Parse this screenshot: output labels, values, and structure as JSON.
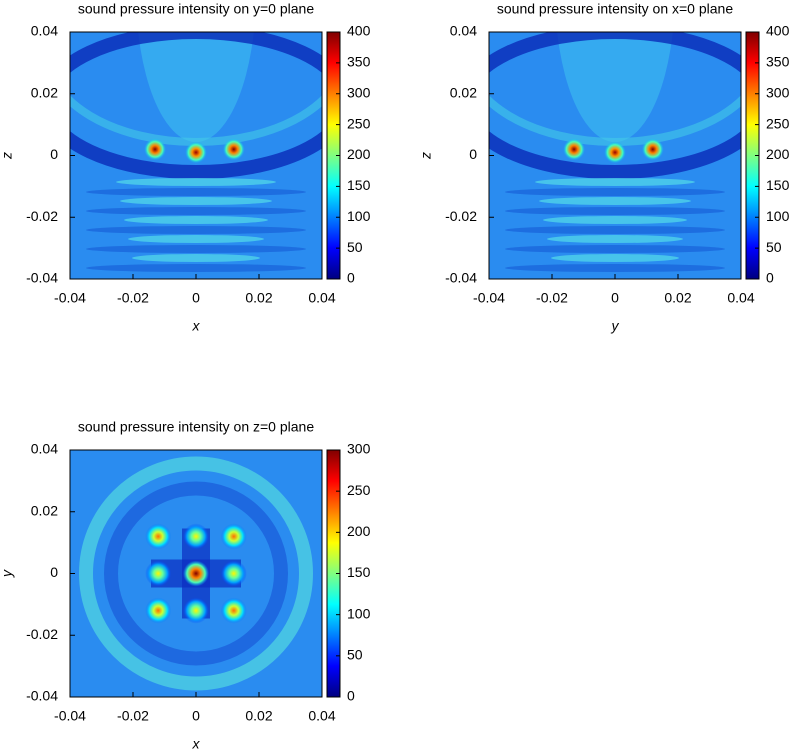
{
  "chart_data": [
    {
      "type": "heatmap",
      "title": "sound pressure intensity on y=0 plane",
      "xlabel": "x",
      "ylabel": "z",
      "xlim": [
        -0.04,
        0.04
      ],
      "ylim": [
        -0.04,
        0.04
      ],
      "xticks": [
        -0.04,
        -0.02,
        0,
        0.02,
        0.04
      ],
      "yticks": [
        -0.04,
        -0.02,
        0,
        0.02,
        0.04
      ],
      "clim": [
        0,
        400
      ],
      "cticks": [
        0,
        50,
        100,
        150,
        200,
        250,
        300,
        350,
        400
      ],
      "colormap": "jet",
      "peaks": [
        {
          "x": -0.013,
          "y": 0.002,
          "value": 400
        },
        {
          "x": 0,
          "y": 0.001,
          "value": 390
        },
        {
          "x": 0.012,
          "y": 0.002,
          "value": 400
        }
      ]
    },
    {
      "type": "heatmap",
      "title": "sound pressure intensity on x=0 plane",
      "xlabel": "y",
      "ylabel": "z",
      "xlim": [
        -0.04,
        0.04
      ],
      "ylim": [
        -0.04,
        0.04
      ],
      "xticks": [
        -0.04,
        -0.02,
        0,
        0.02,
        0.04
      ],
      "yticks": [
        -0.04,
        -0.02,
        0,
        0.02,
        0.04
      ],
      "clim": [
        0,
        400
      ],
      "cticks": [
        0,
        50,
        100,
        150,
        200,
        250,
        300,
        350,
        400
      ],
      "colormap": "jet",
      "peaks": [
        {
          "x": -0.013,
          "y": 0.002,
          "value": 400
        },
        {
          "x": 0,
          "y": 0.001,
          "value": 390
        },
        {
          "x": 0.012,
          "y": 0.002,
          "value": 400
        }
      ]
    },
    {
      "type": "heatmap",
      "title": "sound pressure intensity on z=0 plane",
      "xlabel": "x",
      "ylabel": "y",
      "xlim": [
        -0.04,
        0.04
      ],
      "ylim": [
        -0.04,
        0.04
      ],
      "xticks": [
        -0.04,
        -0.02,
        0,
        0.02,
        0.04
      ],
      "yticks": [
        -0.04,
        -0.02,
        0,
        0.02,
        0.04
      ],
      "clim": [
        0,
        300
      ],
      "cticks": [
        0,
        50,
        100,
        150,
        200,
        250,
        300
      ],
      "colormap": "jet",
      "peaks": [
        {
          "x": 0,
          "y": 0,
          "value": 300
        },
        {
          "x": -0.012,
          "y": 0.012,
          "value": 230
        },
        {
          "x": 0.012,
          "y": 0.012,
          "value": 230
        },
        {
          "x": -0.012,
          "y": -0.012,
          "value": 230
        },
        {
          "x": 0.012,
          "y": -0.012,
          "value": 230
        },
        {
          "x": 0,
          "y": 0.012,
          "value": 190
        },
        {
          "x": 0,
          "y": -0.012,
          "value": 190
        },
        {
          "x": -0.012,
          "y": 0,
          "value": 190
        },
        {
          "x": 0.012,
          "y": 0,
          "value": 190
        }
      ]
    }
  ]
}
